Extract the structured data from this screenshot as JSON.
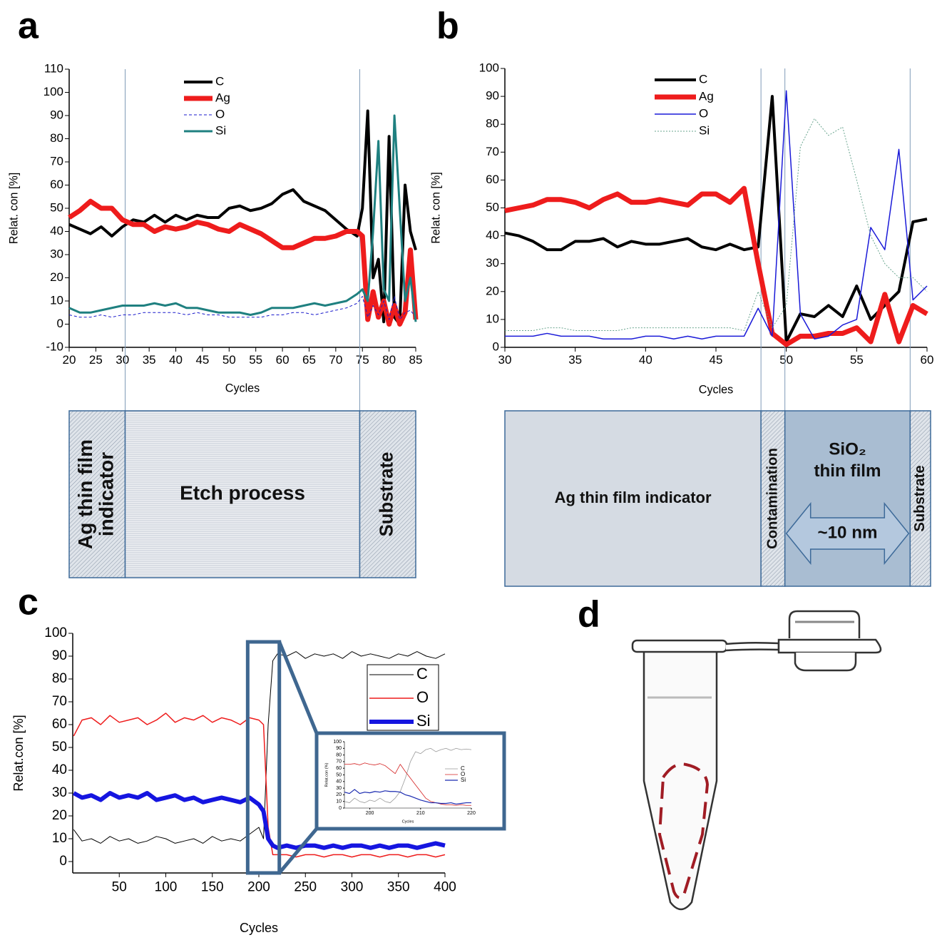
{
  "chart_data": [
    {
      "type": "line",
      "panel_label": "a",
      "x_label": "Cycles",
      "y_label": "Relat. con [%]",
      "xlim": [
        20,
        85
      ],
      "xticks": [
        20,
        25,
        30,
        35,
        40,
        45,
        50,
        55,
        60,
        65,
        70,
        75,
        80,
        85
      ],
      "ylim": [
        -10,
        110
      ],
      "yticks": [
        -10,
        0,
        10,
        20,
        30,
        40,
        50,
        60,
        70,
        80,
        90,
        100,
        110
      ],
      "legend": true,
      "boundaries": [
        30.5,
        74.5
      ],
      "x": [
        20,
        22,
        24,
        26,
        28,
        30,
        32,
        34,
        36,
        38,
        40,
        42,
        44,
        46,
        48,
        50,
        52,
        54,
        56,
        58,
        60,
        62,
        64,
        66,
        68,
        70,
        72,
        74,
        75,
        76,
        77,
        78,
        79,
        80,
        81,
        82,
        83,
        84,
        85
      ],
      "series": [
        {
          "name": "C",
          "color": "#000000",
          "width": 4,
          "style": "solid",
          "values": [
            43,
            41,
            39,
            42,
            38,
            42,
            45,
            44,
            47,
            44,
            47,
            45,
            47,
            46,
            46,
            50,
            51,
            49,
            50,
            52,
            56,
            58,
            53,
            51,
            49,
            45,
            41,
            38,
            50,
            92,
            20,
            28,
            1,
            81,
            3,
            0,
            60,
            40,
            32
          ]
        },
        {
          "name": "Ag",
          "color": "#ee1c1c",
          "width": 7,
          "style": "solid",
          "values": [
            46,
            49,
            53,
            50,
            50,
            45,
            43,
            43,
            40,
            42,
            41,
            42,
            44,
            43,
            41,
            40,
            43,
            41,
            39,
            36,
            33,
            33,
            35,
            37,
            37,
            38,
            40,
            40,
            38,
            2,
            14,
            3,
            10,
            0,
            8,
            0,
            5,
            32,
            2
          ]
        },
        {
          "name": "O",
          "color": "#1a1acc",
          "width": 1,
          "style": "dashed",
          "values": [
            4,
            3,
            3,
            4,
            3,
            4,
            4,
            5,
            5,
            5,
            5,
            4,
            5,
            4,
            4,
            3,
            3,
            3,
            3,
            4,
            4,
            5,
            5,
            4,
            5,
            6,
            7,
            9,
            12,
            3,
            8,
            4,
            10,
            2,
            12,
            2,
            5,
            6,
            3
          ]
        },
        {
          "name": "Si",
          "color": "#1f8080",
          "width": 3,
          "style": "solid",
          "values": [
            7,
            5,
            5,
            6,
            7,
            8,
            8,
            8,
            9,
            8,
            9,
            7,
            7,
            6,
            5,
            5,
            5,
            4,
            5,
            7,
            7,
            7,
            8,
            9,
            8,
            9,
            10,
            13,
            15,
            10,
            40,
            79,
            15,
            10,
            90,
            50,
            10,
            20,
            1
          ]
        }
      ],
      "layers": [
        {
          "lines": [
            "Ag thin film",
            "indicator"
          ],
          "vertical": true
        },
        {
          "lines": [
            "Etch process"
          ],
          "vertical": false
        },
        {
          "lines": [
            "Substrate"
          ],
          "vertical": true
        }
      ]
    },
    {
      "type": "line",
      "panel_label": "b",
      "x_label": "Cycles",
      "y_label": "Relat. con [%]",
      "xlim": [
        30,
        60
      ],
      "xticks": [
        30,
        35,
        40,
        45,
        50,
        55,
        60
      ],
      "ylim": [
        0,
        100
      ],
      "yticks": [
        0,
        10,
        20,
        30,
        40,
        50,
        60,
        70,
        80,
        90,
        100
      ],
      "legend": true,
      "boundaries": [
        48.2,
        49.9,
        58.8
      ],
      "x": [
        30,
        31,
        32,
        33,
        34,
        35,
        36,
        37,
        38,
        39,
        40,
        41,
        42,
        43,
        44,
        45,
        46,
        47,
        48,
        49,
        50,
        51,
        52,
        53,
        54,
        55,
        56,
        57,
        58,
        59,
        60
      ],
      "series": [
        {
          "name": "C",
          "color": "#000000",
          "width": 4,
          "style": "solid",
          "values": [
            41,
            40,
            38,
            35,
            35,
            38,
            38,
            39,
            36,
            38,
            37,
            37,
            38,
            39,
            36,
            35,
            37,
            35,
            36,
            90,
            2,
            12,
            11,
            15,
            11,
            22,
            10,
            15,
            20,
            45,
            46
          ]
        },
        {
          "name": "Ag",
          "color": "#ee1c1c",
          "width": 7,
          "style": "solid",
          "values": [
            49,
            50,
            51,
            53,
            53,
            52,
            50,
            53,
            55,
            52,
            52,
            53,
            52,
            51,
            55,
            55,
            52,
            57,
            30,
            5,
            1,
            4,
            4,
            5,
            5,
            7,
            2,
            19,
            2,
            15,
            12
          ]
        },
        {
          "name": "O",
          "color": "#1a1ad8",
          "width": 1.5,
          "style": "solid",
          "values": [
            4,
            4,
            4,
            5,
            4,
            4,
            4,
            3,
            3,
            3,
            4,
            4,
            3,
            4,
            3,
            4,
            4,
            4,
            14,
            4,
            92,
            12,
            3,
            4,
            8,
            10,
            43,
            35,
            71,
            17,
            22
          ]
        },
        {
          "name": "Si",
          "color": "#6aa58f",
          "width": 1,
          "style": "dotted",
          "values": [
            6,
            6,
            6,
            7,
            7,
            6,
            6,
            6,
            6,
            7,
            7,
            7,
            7,
            7,
            7,
            7,
            7,
            6,
            20,
            7,
            15,
            72,
            82,
            76,
            79,
            60,
            40,
            30,
            25,
            25,
            20
          ]
        }
      ],
      "layers": [
        {
          "lines": [
            "Ag thin film indicator"
          ],
          "vertical": false
        },
        {
          "lines": [
            "Contamination"
          ],
          "vertical": true
        },
        {
          "lines": [
            "SiO₂",
            "thin film"
          ],
          "vertical": false,
          "arrow_label": "~10 nm"
        },
        {
          "lines": [
            "Substrate"
          ],
          "vertical": true
        }
      ]
    },
    {
      "type": "line",
      "panel_label": "c",
      "x_label": "Cycles",
      "y_label": "Relat.con [%]",
      "xlim": [
        0,
        400
      ],
      "xticks": [
        50,
        100,
        150,
        200,
        250,
        300,
        350,
        400
      ],
      "ylim": [
        -5,
        100
      ],
      "yticks": [
        0,
        10,
        20,
        30,
        40,
        50,
        60,
        70,
        80,
        90,
        100
      ],
      "legend": true,
      "highlight_x": [
        188,
        222
      ],
      "x": [
        1,
        10,
        20,
        30,
        40,
        50,
        60,
        70,
        80,
        90,
        100,
        110,
        120,
        130,
        140,
        150,
        160,
        170,
        180,
        190,
        200,
        205,
        210,
        215,
        220,
        230,
        240,
        250,
        260,
        270,
        280,
        290,
        300,
        310,
        320,
        330,
        340,
        350,
        360,
        370,
        380,
        390,
        400
      ],
      "series": [
        {
          "name": "C",
          "color": "#000000",
          "width": 1,
          "style": "solid",
          "values": [
            14,
            9,
            10,
            8,
            11,
            9,
            10,
            8,
            9,
            11,
            10,
            8,
            9,
            10,
            8,
            11,
            9,
            10,
            9,
            12,
            15,
            10,
            60,
            88,
            91,
            90,
            92,
            89,
            91,
            90,
            91,
            89,
            92,
            90,
            91,
            90,
            89,
            91,
            90,
            92,
            90,
            89,
            91
          ]
        },
        {
          "name": "O",
          "color": "#ee1c1c",
          "width": 1.5,
          "style": "solid",
          "values": [
            55,
            62,
            63,
            60,
            64,
            61,
            62,
            63,
            60,
            62,
            65,
            61,
            63,
            62,
            64,
            61,
            63,
            62,
            60,
            63,
            62,
            60,
            15,
            3,
            3,
            3,
            2,
            3,
            3,
            2,
            3,
            3,
            2,
            3,
            3,
            2,
            3,
            3,
            2,
            3,
            3,
            2,
            3
          ]
        },
        {
          "name": "Si",
          "color": "#1515e0",
          "width": 6,
          "style": "solid",
          "values": [
            30,
            28,
            29,
            27,
            30,
            28,
            29,
            28,
            30,
            27,
            28,
            29,
            27,
            28,
            26,
            27,
            28,
            27,
            26,
            28,
            25,
            22,
            10,
            7,
            6,
            7,
            6,
            7,
            7,
            6,
            7,
            6,
            7,
            7,
            6,
            7,
            6,
            7,
            7,
            6,
            7,
            8,
            7
          ]
        }
      ]
    },
    {
      "type": "line",
      "x_label": "Cycles",
      "y_label": "Relat.con (%)",
      "xlim": [
        195,
        220
      ],
      "xticks": [
        200,
        210,
        220
      ],
      "ylim": [
        0,
        100
      ],
      "yticks": [
        0,
        10,
        20,
        30,
        40,
        50,
        60,
        70,
        80,
        90,
        100
      ],
      "legend": true,
      "x": [
        195,
        196,
        197,
        198,
        199,
        200,
        201,
        202,
        203,
        204,
        205,
        206,
        207,
        208,
        209,
        210,
        211,
        212,
        213,
        214,
        215,
        216,
        217,
        218,
        219,
        220
      ],
      "series": [
        {
          "name": "C",
          "color": "#999999",
          "width": 0.8,
          "style": "solid",
          "values": [
            10,
            8,
            15,
            10,
            8,
            12,
            10,
            15,
            10,
            8,
            15,
            25,
            45,
            70,
            85,
            82,
            88,
            90,
            85,
            88,
            90,
            87,
            90,
            88,
            89,
            88
          ]
        },
        {
          "name": "O",
          "color": "#d42020",
          "width": 0.8,
          "style": "solid",
          "values": [
            66,
            66,
            67,
            65,
            68,
            66,
            65,
            67,
            64,
            58,
            52,
            66,
            55,
            45,
            35,
            25,
            15,
            10,
            8,
            6,
            5,
            5,
            4,
            5,
            4,
            4
          ]
        },
        {
          "name": "Si",
          "color": "#1a2ab0",
          "width": 1.2,
          "style": "solid",
          "values": [
            24,
            22,
            28,
            22,
            24,
            23,
            25,
            24,
            26,
            25,
            25,
            24,
            20,
            18,
            15,
            12,
            10,
            8,
            8,
            7,
            7,
            8,
            6,
            7,
            8,
            8
          ]
        }
      ]
    }
  ],
  "figure_d": {
    "panel_label": "d"
  }
}
